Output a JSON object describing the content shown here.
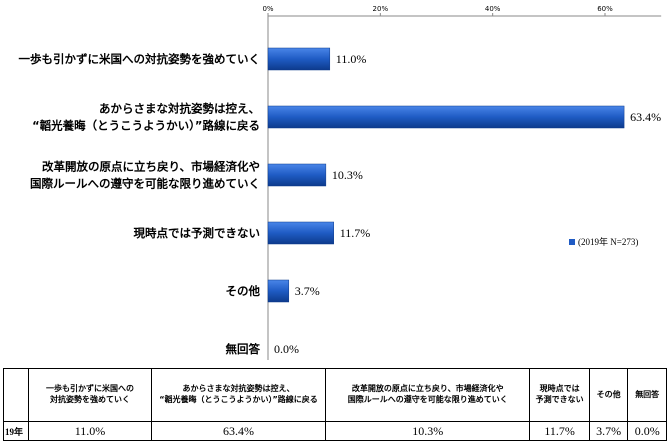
{
  "chart_data": {
    "type": "bar",
    "orientation": "horizontal",
    "title": "",
    "xlabel": "",
    "ylabel": "",
    "xlim": [
      0,
      70
    ],
    "xticks": [
      0,
      20,
      40,
      60
    ],
    "xtick_labels": [
      "0%",
      "20%",
      "40%",
      "60%"
    ],
    "grid": false,
    "legend_position": "right",
    "categories": [
      "一歩も引かずに米国への対抗姿勢を強めていく",
      "あからさまな対抗姿勢は控え、\n“韜光養晦（とうこうようかい）”路線に戻る",
      "改革開放の原点に立ち戻り、市場経済化や\n国際ルールへの遵守を可能な限り進めていく",
      "現時点では予測できない",
      "その他",
      "無回答"
    ],
    "series": [
      {
        "name": "(2019年 N=273)",
        "color": "#1f5bc4",
        "values": [
          11.0,
          63.4,
          10.3,
          11.7,
          3.7,
          0.0
        ],
        "value_labels": [
          "11.0%",
          "63.4%",
          "10.3%",
          "11.7%",
          "3.7%",
          "0.0%"
        ]
      }
    ]
  },
  "table": {
    "corner": "",
    "headers": [
      "一歩も引かずに米国への\n対抗姿勢を強めていく",
      "あからさまな対抗姿勢は控え、\n“韜光養晦（とうこうようかい）”路線に戻る",
      "改革開放の原点に立ち戻り、市場経済化や\n国際ルールへの遵守を可能な限り進めていく",
      "現時点では\n予測できない",
      "その他",
      "無回答"
    ],
    "row_label": "19年",
    "values": [
      "11.0%",
      "63.4%",
      "10.3%",
      "11.7%",
      "3.7%",
      "0.0%"
    ]
  }
}
